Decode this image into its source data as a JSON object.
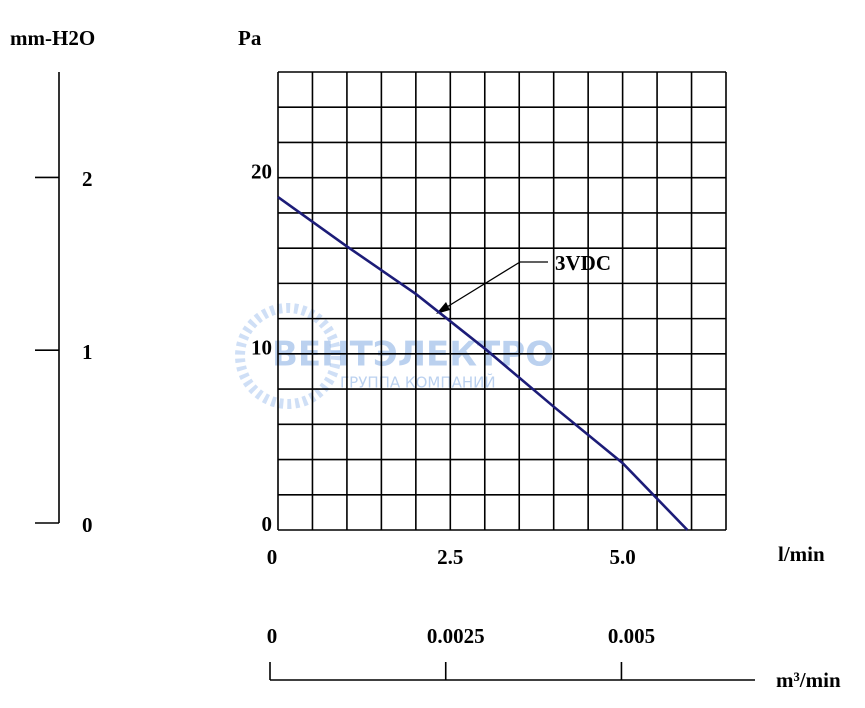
{
  "chart_data": {
    "type": "line",
    "x_label": "l/min",
    "y_label": "Pa",
    "xlim": [
      0,
      6.5
    ],
    "xticks": [
      0,
      2.5,
      {
        "value": 5,
        "label": "5.0"
      }
    ],
    "ylim": [
      0,
      26
    ],
    "yticks": [
      0,
      10,
      20
    ],
    "grid": true,
    "x_grid_step": 0.5,
    "y_grid_step": 2,
    "series": [
      {
        "name": "3VDC",
        "color": "#1c1c78",
        "x": [
          0,
          1,
          2,
          3,
          4,
          5,
          5.94
        ],
        "values": [
          18.9,
          16.1,
          13.4,
          10.3,
          7.0,
          3.8,
          0
        ]
      }
    ],
    "y2_label": "mm-H2O",
    "y2lim": [
      0,
      2.61
    ],
    "y2ticks": [
      0,
      1,
      2
    ],
    "x2_label": "m³/min",
    "x2lim": [
      0,
      0.0069
    ],
    "x2ticks": [
      0,
      0.0025,
      0.005
    ],
    "watermark": {
      "title": "ВЕНТЭЛЕКТРО",
      "subtitle": "ГРУППА КОМПАНИЙ"
    }
  }
}
